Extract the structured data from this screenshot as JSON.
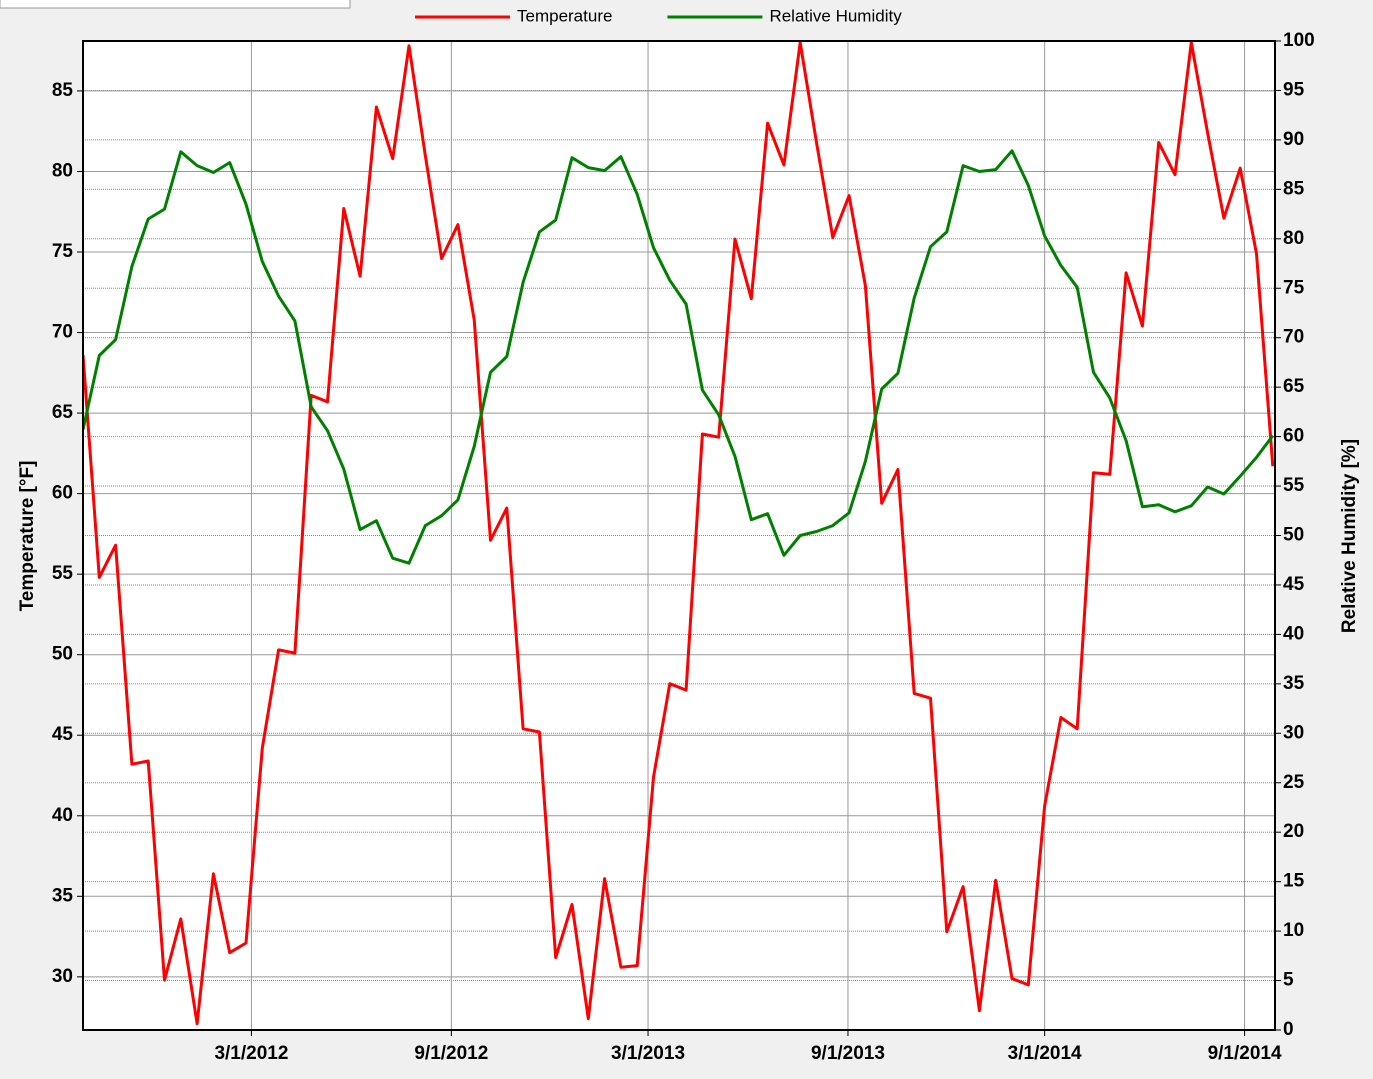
{
  "chart_data": {
    "type": "line",
    "legend": "top",
    "ylabel": "Temperature [°F]",
    "y2label": "Relative Humidity [%]",
    "x": [
      "2011-09-28",
      "2011-10-13",
      "2011-10-28",
      "2011-11-12",
      "2011-11-27",
      "2011-12-12",
      "2011-12-27",
      "2012-01-11",
      "2012-01-26",
      "2012-02-10",
      "2012-02-25",
      "2012-03-11",
      "2012-03-26",
      "2012-04-10",
      "2012-04-25",
      "2012-05-10",
      "2012-05-25",
      "2012-06-09",
      "2012-06-24",
      "2012-07-09",
      "2012-07-24",
      "2012-08-08",
      "2012-08-23",
      "2012-09-07",
      "2012-09-22",
      "2012-10-07",
      "2012-10-22",
      "2012-11-06",
      "2012-11-21",
      "2012-12-06",
      "2012-12-21",
      "2013-01-05",
      "2013-01-20",
      "2013-02-04",
      "2013-02-19",
      "2013-03-06",
      "2013-03-21",
      "2013-04-05",
      "2013-04-20",
      "2013-05-05",
      "2013-05-20",
      "2013-06-04",
      "2013-06-19",
      "2013-07-04",
      "2013-07-19",
      "2013-08-03",
      "2013-08-18",
      "2013-09-02",
      "2013-09-17",
      "2013-10-02",
      "2013-10-17",
      "2013-11-01",
      "2013-11-16",
      "2013-12-01",
      "2013-12-16",
      "2013-12-31",
      "2014-01-15",
      "2014-01-30",
      "2014-02-14",
      "2014-03-01",
      "2014-03-16",
      "2014-03-31",
      "2014-04-15",
      "2014-04-30",
      "2014-05-15",
      "2014-05-30",
      "2014-06-14",
      "2014-06-29",
      "2014-07-14",
      "2014-07-29",
      "2014-08-13",
      "2014-08-28",
      "2014-09-12",
      "2014-09-27"
    ],
    "series": [
      {
        "name": "Temperature",
        "color": "#ff0000",
        "values": [
          68.6,
          54.8,
          56.8,
          43.2,
          43.4,
          29.8,
          33.6,
          27.1,
          36.4,
          31.5,
          32.1,
          44.2,
          50.3,
          50.1,
          66.1,
          65.7,
          77.7,
          73.5,
          84.0,
          80.8,
          87.8,
          81.0,
          74.6,
          76.7,
          70.8,
          57.1,
          59.1,
          45.4,
          45.2,
          31.2,
          34.5,
          27.4,
          36.1,
          30.6,
          30.7,
          42.4,
          48.2,
          47.8,
          63.7,
          63.5,
          75.8,
          72.1,
          83.0,
          80.4,
          88.0,
          81.8,
          75.9,
          78.5,
          72.9,
          59.4,
          61.5,
          47.6,
          47.3,
          32.8,
          35.6,
          27.9,
          36.0,
          29.9,
          29.5,
          40.6,
          46.1,
          45.4,
          61.3,
          61.2,
          73.7,
          70.4,
          81.8,
          79.8,
          88.0,
          82.4,
          77.1,
          80.2,
          74.9,
          61.7
        ]
      },
      {
        "name": "Relative Humidity",
        "color": "#008000",
        "axis": "y2",
        "values": [
          60.7,
          68.2,
          69.8,
          77.2,
          82.0,
          83.0,
          88.8,
          87.4,
          86.7,
          87.7,
          83.5,
          77.7,
          74.2,
          71.7,
          63.0,
          60.6,
          56.7,
          50.6,
          51.5,
          47.7,
          47.2,
          51.0,
          52.0,
          53.6,
          59.0,
          66.5,
          68.1,
          75.6,
          80.7,
          81.9,
          88.2,
          87.2,
          86.9,
          88.3,
          84.5,
          79.1,
          75.8,
          73.4,
          64.7,
          62.2,
          58.0,
          51.6,
          52.2,
          48.0,
          50.0,
          50.4,
          51.0,
          52.3,
          57.5,
          64.8,
          66.4,
          74.0,
          79.2,
          80.7,
          87.4,
          86.8,
          87.0,
          88.9,
          85.4,
          80.3,
          77.3,
          75.1,
          66.5,
          63.9,
          59.6,
          52.9,
          53.1,
          52.4,
          53.0,
          54.9,
          54.2,
          56.0,
          57.9,
          60.1
        ]
      }
    ],
    "xlim": [
      "2011-09-28",
      "2014-09-29"
    ],
    "xticks": [
      {
        "value": "2012-03-01",
        "label": "3/1/2012"
      },
      {
        "value": "2012-09-01",
        "label": "9/1/2012"
      },
      {
        "value": "2013-03-01",
        "label": "3/1/2013"
      },
      {
        "value": "2013-09-01",
        "label": "9/1/2013"
      },
      {
        "value": "2014-03-01",
        "label": "3/1/2014"
      },
      {
        "value": "2014-09-01",
        "label": "9/1/2014"
      }
    ],
    "ylim": [
      26.7,
      88.1
    ],
    "yticks": [
      30,
      35,
      40,
      45,
      50,
      55,
      60,
      65,
      70,
      75,
      80,
      85
    ],
    "y2lim": [
      0,
      100
    ],
    "y2ticks": [
      0,
      5,
      10,
      15,
      20,
      25,
      30,
      35,
      40,
      45,
      50,
      55,
      60,
      65,
      70,
      75,
      80,
      85,
      90,
      95,
      100
    ],
    "grid": true
  }
}
